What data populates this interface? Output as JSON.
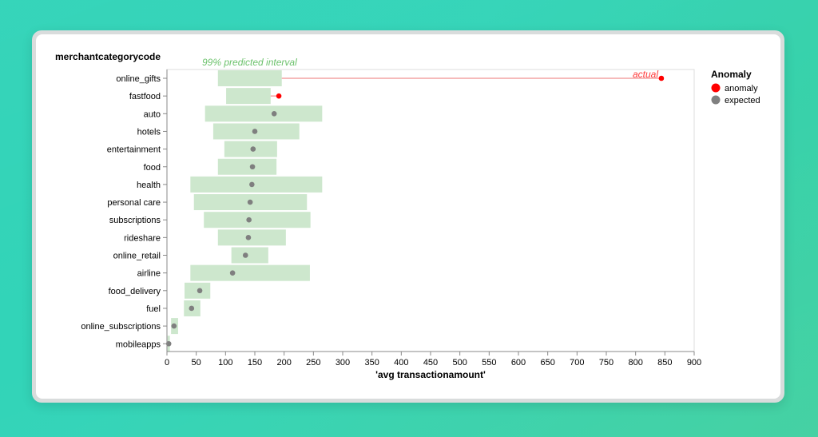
{
  "chart_data": {
    "type": "bar",
    "subtype": "range-bar with points (horizontal)",
    "y_title": "merchantcategorycode",
    "x_title": "'avg transactionamount'",
    "xlim": [
      0,
      900
    ],
    "x_ticks": [
      0,
      50,
      100,
      150,
      200,
      250,
      300,
      350,
      400,
      450,
      500,
      550,
      600,
      650,
      700,
      750,
      800,
      850,
      900
    ],
    "grid": false,
    "annotations": {
      "interval_label": "99% predicted interval",
      "actual_label": "actual"
    },
    "legend": {
      "title": "Anomaly",
      "position": "right",
      "entries": [
        {
          "label": "anomaly",
          "color": "#ff0000"
        },
        {
          "label": "expected",
          "color": "#808080"
        }
      ]
    },
    "colors": {
      "interval_bar": "#cde7cd",
      "anomaly_point": "#ff0000",
      "anomaly_line": "#f4a3a3",
      "expected_point": "#7f7f7f"
    },
    "categories": [
      "online_gifts",
      "fastfood",
      "auto",
      "hotels",
      "entertainment",
      "food",
      "health",
      "personal care",
      "subscriptions",
      "rideshare",
      "online_retail",
      "airline",
      "food_delivery",
      "fuel",
      "online_subscriptions",
      "mobileapps"
    ],
    "series": [
      {
        "name": "interval_low",
        "values": [
          87,
          101,
          65,
          79,
          98,
          87,
          40,
          46,
          63,
          87,
          110,
          40,
          30,
          29,
          7,
          1
        ]
      },
      {
        "name": "interval_high",
        "values": [
          196,
          177,
          265,
          226,
          188,
          187,
          265,
          239,
          245,
          203,
          173,
          244,
          74,
          57,
          19,
          5
        ]
      },
      {
        "name": "actual",
        "values": [
          844,
          191,
          183,
          150,
          147,
          146,
          145,
          142,
          140,
          139,
          134,
          112,
          56,
          42,
          12,
          3
        ]
      },
      {
        "name": "anomaly",
        "values": [
          "anomaly",
          "anomaly",
          "expected",
          "expected",
          "expected",
          "expected",
          "expected",
          "expected",
          "expected",
          "expected",
          "expected",
          "expected",
          "expected",
          "expected",
          "expected",
          "expected"
        ]
      }
    ]
  }
}
